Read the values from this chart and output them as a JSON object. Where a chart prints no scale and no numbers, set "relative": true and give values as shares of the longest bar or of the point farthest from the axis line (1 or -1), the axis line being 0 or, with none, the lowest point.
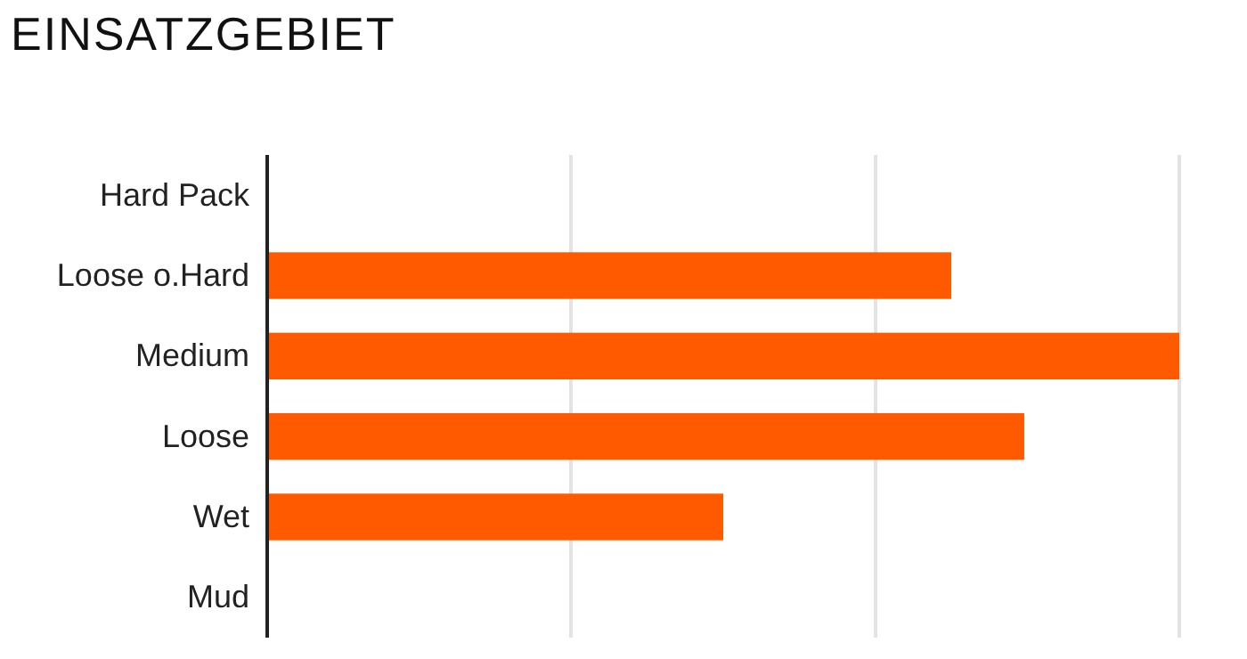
{
  "chart_data": {
    "type": "bar",
    "orientation": "horizontal",
    "relative": true,
    "title": "EINSATZGEBIET",
    "categories": [
      "Hard Pack",
      "Loose o.Hard",
      "Medium",
      "Loose",
      "Wet",
      "Mud"
    ],
    "values": [
      0,
      0.75,
      1,
      0.83,
      0.5,
      0
    ],
    "color": "#ff5a00",
    "ref_lines": [
      {
        "axis": "x",
        "value": 0.333,
        "color": "#e3e3e3"
      },
      {
        "axis": "x",
        "value": 0.667,
        "color": "#e3e3e3"
      },
      {
        "axis": "x",
        "value": 1,
        "color": "#e3e3e3"
      }
    ]
  }
}
